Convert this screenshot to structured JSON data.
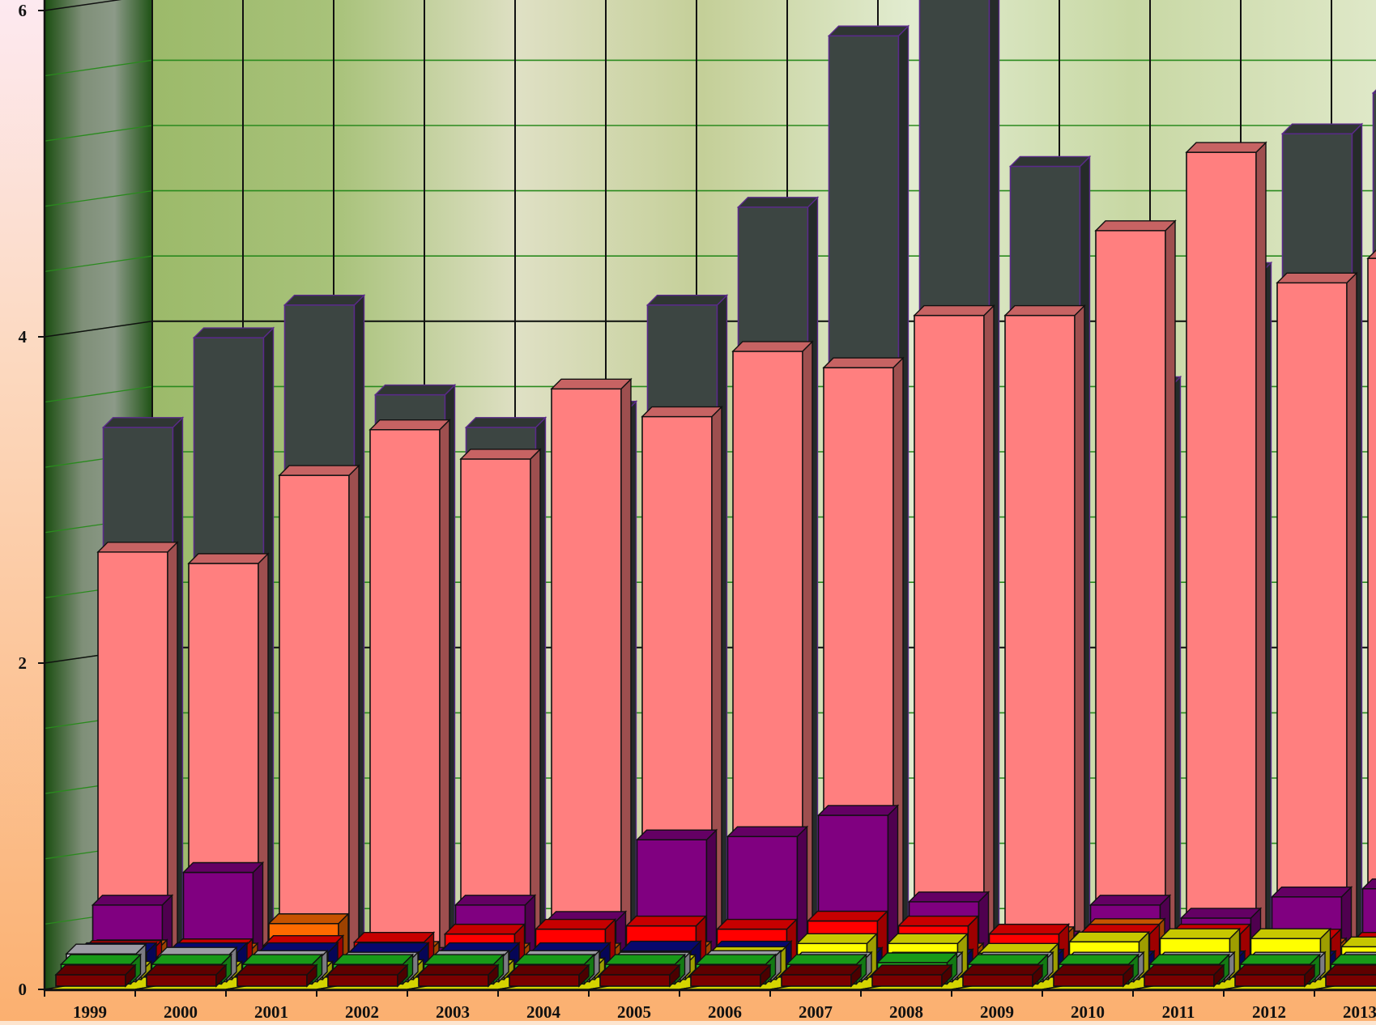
{
  "chart_data": {
    "type": "bar",
    "stacked": "3d-depth",
    "title": "",
    "xlabel": "",
    "ylabel": "",
    "ylim": [
      0,
      12
    ],
    "yticks": [
      0,
      2,
      4,
      6,
      8,
      10,
      12
    ],
    "grid": true,
    "legend": "none",
    "categories": [
      "1999",
      "2000",
      "2001",
      "2002",
      "2003",
      "2004",
      "2005",
      "2006",
      "2007",
      "2008",
      "2009",
      "2010",
      "2011",
      "2012",
      "2013"
    ],
    "series": [
      {
        "color": "#7a0000",
        "values": [
          0.07,
          0.07,
          0.07,
          0.07,
          0.07,
          0.07,
          0.07,
          0.07,
          0.07,
          0.07,
          0.07,
          0.07,
          0.07,
          0.07,
          0.07
        ]
      },
      {
        "color": "#1fc41f",
        "values": [
          0.12,
          0.12,
          0.12,
          0.12,
          0.12,
          0.12,
          0.12,
          0.12,
          0.12,
          0.13,
          0.12,
          0.12,
          0.12,
          0.12,
          0.12
        ]
      },
      {
        "color": "#c8c8d2",
        "values": [
          0.17,
          0.15,
          0.13,
          0.12,
          0.13,
          0.13,
          0.12,
          0.13,
          0.12,
          0.12,
          0.12,
          0.12,
          0.12,
          0.12,
          0.12
        ]
      },
      {
        "color": "#ffff00",
        "values": [
          0.05,
          0.05,
          0.05,
          0.06,
          0.06,
          0.07,
          0.09,
          0.14,
          0.22,
          0.22,
          0.16,
          0.23,
          0.25,
          0.25,
          0.2
        ]
      },
      {
        "color": "#0a0a8c",
        "values": [
          0.15,
          0.15,
          0.15,
          0.15,
          0.15,
          0.15,
          0.16,
          0.16,
          0.12,
          0.11,
          0.11,
          0.1,
          0.1,
          0.1,
          0.1
        ]
      },
      {
        "color": "#ff0000",
        "values": [
          0.15,
          0.16,
          0.18,
          0.2,
          0.25,
          0.28,
          0.3,
          0.28,
          0.33,
          0.3,
          0.25,
          0.25,
          0.25,
          0.22,
          0.2
        ]
      },
      {
        "color": "#ff6a00",
        "values": [
          0.14,
          0.12,
          0.3,
          0.13,
          0.12,
          0.12,
          0.13,
          0.13,
          0.12,
          0.12,
          0.22,
          0.27,
          0.14,
          0.15,
          0.15
        ]
      },
      {
        "color": "#800080",
        "values": [
          0.4,
          0.6,
          0.05,
          0.08,
          0.4,
          0.3,
          0.8,
          0.82,
          0.95,
          0.42,
          0.18,
          0.4,
          0.32,
          0.45,
          0.5
        ]
      },
      {
        "color": "#ff7f7f",
        "values": [
          2.55,
          2.48,
          3.02,
          3.3,
          3.12,
          3.55,
          3.38,
          3.78,
          3.68,
          4.0,
          4.0,
          4.52,
          5.0,
          4.2,
          4.35
        ]
      },
      {
        "color": "#3c4542",
        "values": [
          3.3,
          3.85,
          4.05,
          3.5,
          3.3,
          3.4,
          4.05,
          4.65,
          5.7,
          6.15,
          4.9,
          3.55,
          4.25,
          5.1,
          5.35
        ]
      }
    ]
  }
}
